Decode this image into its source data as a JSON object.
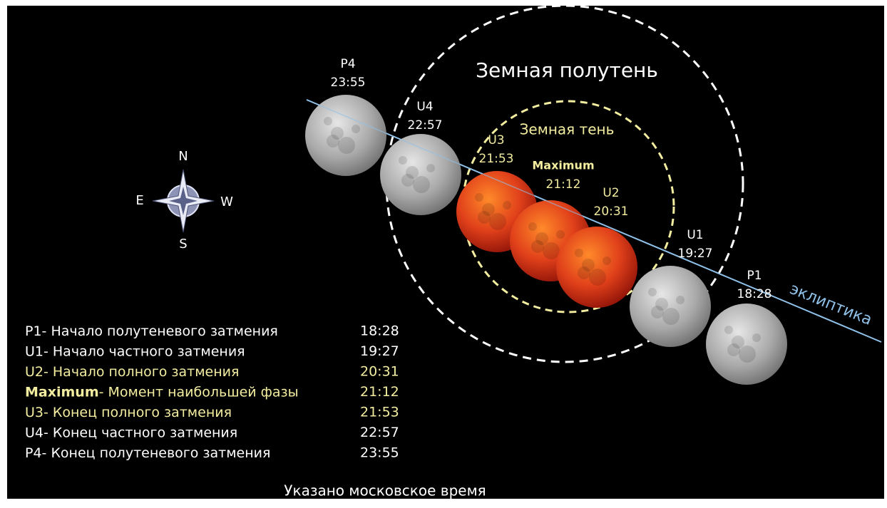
{
  "diagram": {
    "penumbra_label": "Земная полутень",
    "umbra_label": "Земная тень",
    "ecliptic_label": "эклиптика",
    "compass": {
      "north": "N",
      "east": "E",
      "west": "W",
      "south": "S"
    },
    "events": [
      {
        "code": "P1",
        "description": "- Начало полутеневого затмения",
        "time": "18:28"
      },
      {
        "code": "U1",
        "description": "- Начало частного затмения",
        "time": "19:27"
      },
      {
        "code": "U2",
        "description": "- Начало полного затмения",
        "time": "20:31"
      },
      {
        "code": "Maximum",
        "description": "- Момент наибольшей фазы",
        "time": "21:12"
      },
      {
        "code": "U3",
        "description": "- Конец полного затмения",
        "time": "21:53"
      },
      {
        "code": "U4",
        "description": "- Конец частного затмения",
        "time": "22:57"
      },
      {
        "code": "P4",
        "description": "- Конец полутеневого затмения",
        "time": "23:55"
      }
    ],
    "footer": "Указано московское время"
  }
}
